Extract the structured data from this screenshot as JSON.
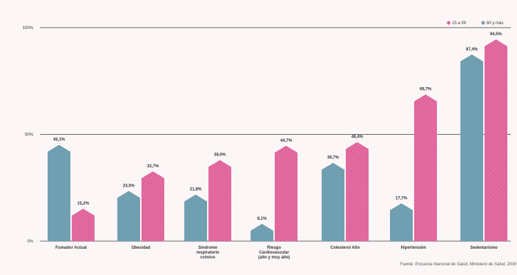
{
  "chart_data": {
    "type": "bar",
    "categories": [
      [
        "Fumador Actual"
      ],
      [
        "Obesidad"
      ],
      [
        "Síndrome",
        "respiratorio",
        "crónico"
      ],
      [
        "Riesgo",
        "Cardiovascular",
        "(alto y muy alto)"
      ],
      [
        "Colesterol Alto"
      ],
      [
        "Hipertensión"
      ],
      [
        "Sedentarismo"
      ]
    ],
    "series": [
      {
        "name": "15 a 59",
        "color": "#e0629a",
        "values": [
          15.2,
          32.7,
          38.0,
          44.7,
          46.4,
          68.7,
          94.5
        ]
      },
      {
        "name": "60 y más",
        "color": "#6f9fb0",
        "values": [
          45.1,
          23.5,
          21.8,
          8.1,
          36.7,
          17.7,
          87.4
        ]
      }
    ],
    "value_labels": {
      "15 a 59": [
        "15,2%",
        "32,7%",
        "38,0%",
        "44,7%",
        "46,4%",
        "68,7%",
        "94,5%"
      ],
      "60 y más": [
        "45,1%",
        "23,5%",
        "21,8%",
        "8,1%",
        "36,7%",
        "17,7%",
        "87,4%"
      ]
    },
    "ylim": [
      0,
      100
    ],
    "yticks": [
      0,
      50,
      100
    ],
    "ytick_labels": [
      "0%",
      "50%",
      "100%"
    ],
    "legend_position": "top-right",
    "source": "Fuente: Encuesta Nacional de Salud, Ministerio de Salud, 2009"
  }
}
